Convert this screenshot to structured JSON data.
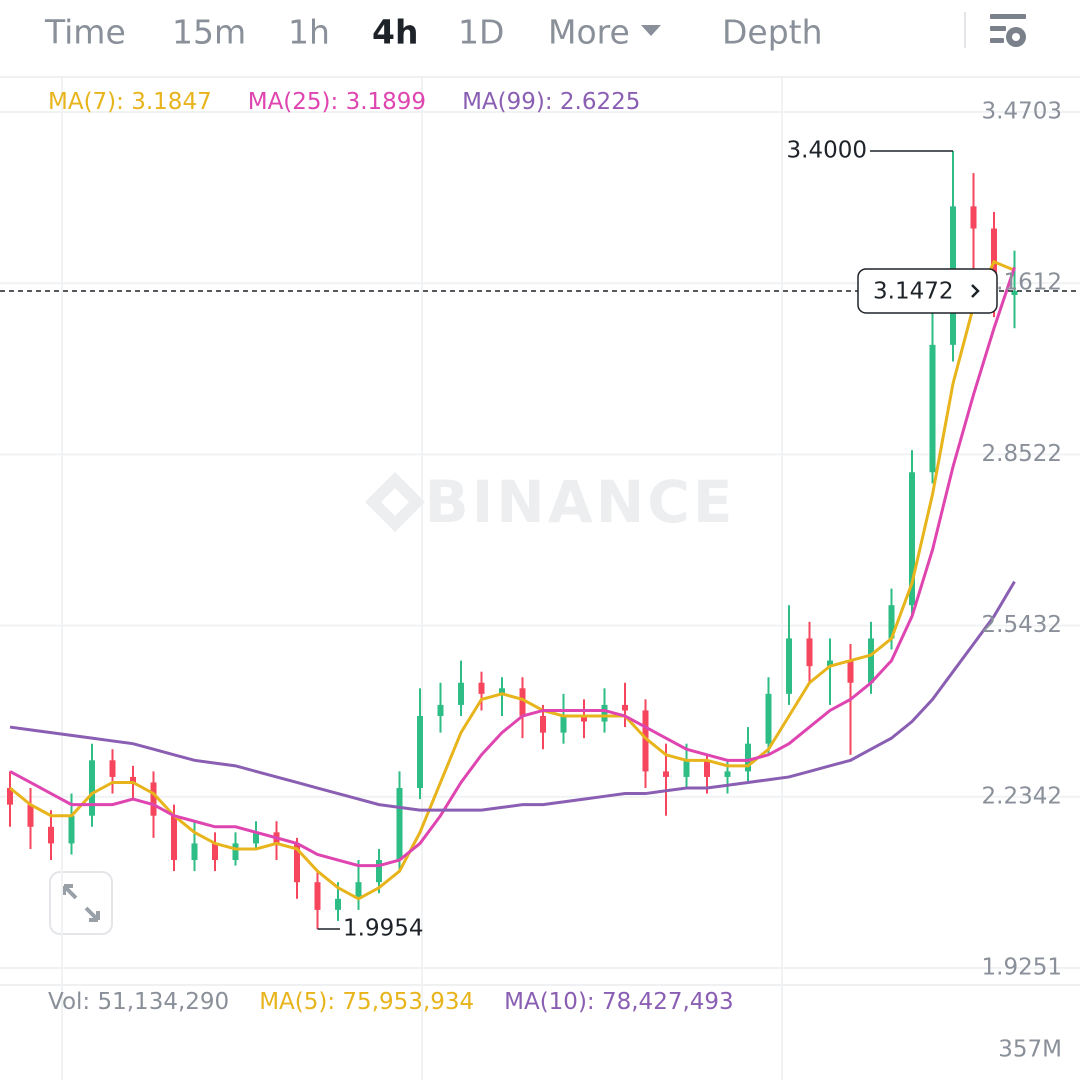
{
  "tabs": [
    "Time",
    "15m",
    "1h",
    "4h",
    "1D",
    "More",
    "Depth"
  ],
  "active_tab": 3,
  "chart_data": {
    "type": "candlestick",
    "watermark": "BINANCE",
    "indicators": [
      {
        "name": "MA(7):",
        "value": 3.1847,
        "color": "#e8b41c"
      },
      {
        "name": "MA(25):",
        "value": 3.1899,
        "color": "#df45b0"
      },
      {
        "name": "MA(99):",
        "value": 2.6225,
        "color": "#8a5fb3"
      }
    ],
    "volume_indicators": [
      {
        "name": "Vol:",
        "value": 51134290,
        "label": "51,134,290",
        "color": "#8a9099"
      },
      {
        "name": "MA(5):",
        "value": 75953934,
        "label": "75,953,934",
        "color": "#e8b41c"
      },
      {
        "name": "MA(10):",
        "value": 78427493,
        "label": "78,427,493",
        "color": "#8a5fb3"
      }
    ],
    "ylim": [
      1.8944,
      3.5317
    ],
    "yticks": [
      3.4703,
      3.1612,
      2.8522,
      2.5432,
      2.2342,
      1.9251
    ],
    "volume_ticks": [
      {
        "value": 357000000,
        "label": "357M"
      }
    ],
    "up_color": "#2ebd85",
    "down_color": "#f6465d",
    "high_label": {
      "value": 3.4,
      "label": "3.4000"
    },
    "low_label": 1.9954,
    "last_price": 3.1472,
    "open": [
      2.25,
      2.22,
      2.18,
      2.15,
      2.2,
      2.3,
      2.27,
      2.26,
      2.2,
      2.12,
      2.15,
      2.12,
      2.15,
      2.17,
      2.15,
      2.08,
      2.03,
      2.05,
      2.08,
      2.12,
      2.25,
      2.38,
      2.4,
      2.44,
      2.42,
      2.43,
      2.38,
      2.35,
      2.38,
      2.37,
      2.4,
      2.39,
      2.28,
      2.27,
      2.3,
      2.27,
      2.28,
      2.33,
      2.42,
      2.52,
      2.47,
      2.48,
      2.44,
      2.52,
      2.58,
      2.82,
      3.05,
      3.3,
      3.26,
      3.14
    ],
    "high": [
      2.28,
      2.25,
      2.21,
      2.24,
      2.33,
      2.32,
      2.29,
      2.28,
      2.22,
      2.19,
      2.17,
      2.17,
      2.19,
      2.19,
      2.16,
      2.1,
      2.08,
      2.12,
      2.14,
      2.28,
      2.43,
      2.44,
      2.48,
      2.46,
      2.45,
      2.45,
      2.4,
      2.42,
      2.41,
      2.43,
      2.44,
      2.41,
      2.33,
      2.33,
      2.31,
      2.3,
      2.36,
      2.45,
      2.58,
      2.55,
      2.52,
      2.51,
      2.55,
      2.61,
      2.86,
      3.12,
      3.4,
      3.36,
      3.29,
      3.22
    ],
    "low": [
      2.18,
      2.14,
      2.12,
      2.13,
      2.18,
      2.24,
      2.23,
      2.16,
      2.1,
      2.1,
      2.1,
      2.11,
      2.14,
      2.12,
      2.05,
      1.9954,
      2.01,
      2.03,
      2.06,
      2.1,
      2.23,
      2.35,
      2.38,
      2.39,
      2.38,
      2.34,
      2.32,
      2.33,
      2.34,
      2.35,
      2.36,
      2.25,
      2.2,
      2.25,
      2.24,
      2.24,
      2.26,
      2.31,
      2.4,
      2.44,
      2.4,
      2.31,
      2.42,
      2.5,
      2.56,
      2.8,
      3.02,
      3.18,
      3.1,
      3.08
    ],
    "close": [
      2.22,
      2.18,
      2.15,
      2.2,
      2.3,
      2.27,
      2.26,
      2.2,
      2.12,
      2.15,
      2.12,
      2.15,
      2.17,
      2.15,
      2.08,
      2.03,
      2.05,
      2.08,
      2.12,
      2.25,
      2.38,
      2.4,
      2.44,
      2.42,
      2.43,
      2.38,
      2.35,
      2.38,
      2.37,
      2.4,
      2.39,
      2.28,
      2.27,
      2.3,
      2.27,
      2.28,
      2.33,
      2.42,
      2.52,
      2.47,
      2.48,
      2.44,
      2.52,
      2.58,
      2.82,
      3.05,
      3.3,
      3.26,
      3.14,
      3.1472
    ],
    "ma_lines": [
      [
        2.25,
        2.22,
        2.2,
        2.2,
        2.24,
        2.26,
        2.26,
        2.24,
        2.2,
        2.17,
        2.15,
        2.14,
        2.14,
        2.15,
        2.14,
        2.1,
        2.07,
        2.05,
        2.07,
        2.1,
        2.17,
        2.26,
        2.35,
        2.41,
        2.42,
        2.41,
        2.39,
        2.38,
        2.38,
        2.38,
        2.38,
        2.34,
        2.31,
        2.3,
        2.3,
        2.29,
        2.29,
        2.32,
        2.38,
        2.44,
        2.47,
        2.48,
        2.49,
        2.52,
        2.62,
        2.78,
        2.98,
        3.12,
        3.2,
        3.1847
      ],
      [
        2.28,
        2.26,
        2.24,
        2.22,
        2.22,
        2.22,
        2.23,
        2.22,
        2.2,
        2.19,
        2.18,
        2.18,
        2.17,
        2.16,
        2.15,
        2.13,
        2.12,
        2.11,
        2.11,
        2.12,
        2.15,
        2.2,
        2.26,
        2.31,
        2.35,
        2.38,
        2.39,
        2.39,
        2.39,
        2.39,
        2.38,
        2.36,
        2.34,
        2.32,
        2.31,
        2.3,
        2.3,
        2.31,
        2.33,
        2.36,
        2.39,
        2.41,
        2.44,
        2.48,
        2.56,
        2.68,
        2.83,
        2.96,
        3.08,
        3.1899
      ],
      [
        2.36,
        2.355,
        2.35,
        2.345,
        2.34,
        2.335,
        2.33,
        2.32,
        2.31,
        2.3,
        2.295,
        2.29,
        2.28,
        2.27,
        2.26,
        2.25,
        2.24,
        2.23,
        2.22,
        2.215,
        2.21,
        2.21,
        2.21,
        2.21,
        2.215,
        2.22,
        2.22,
        2.225,
        2.23,
        2.235,
        2.24,
        2.24,
        2.245,
        2.25,
        2.25,
        2.255,
        2.26,
        2.265,
        2.27,
        2.28,
        2.29,
        2.3,
        2.32,
        2.34,
        2.37,
        2.41,
        2.46,
        2.51,
        2.56,
        2.6225
      ]
    ]
  }
}
